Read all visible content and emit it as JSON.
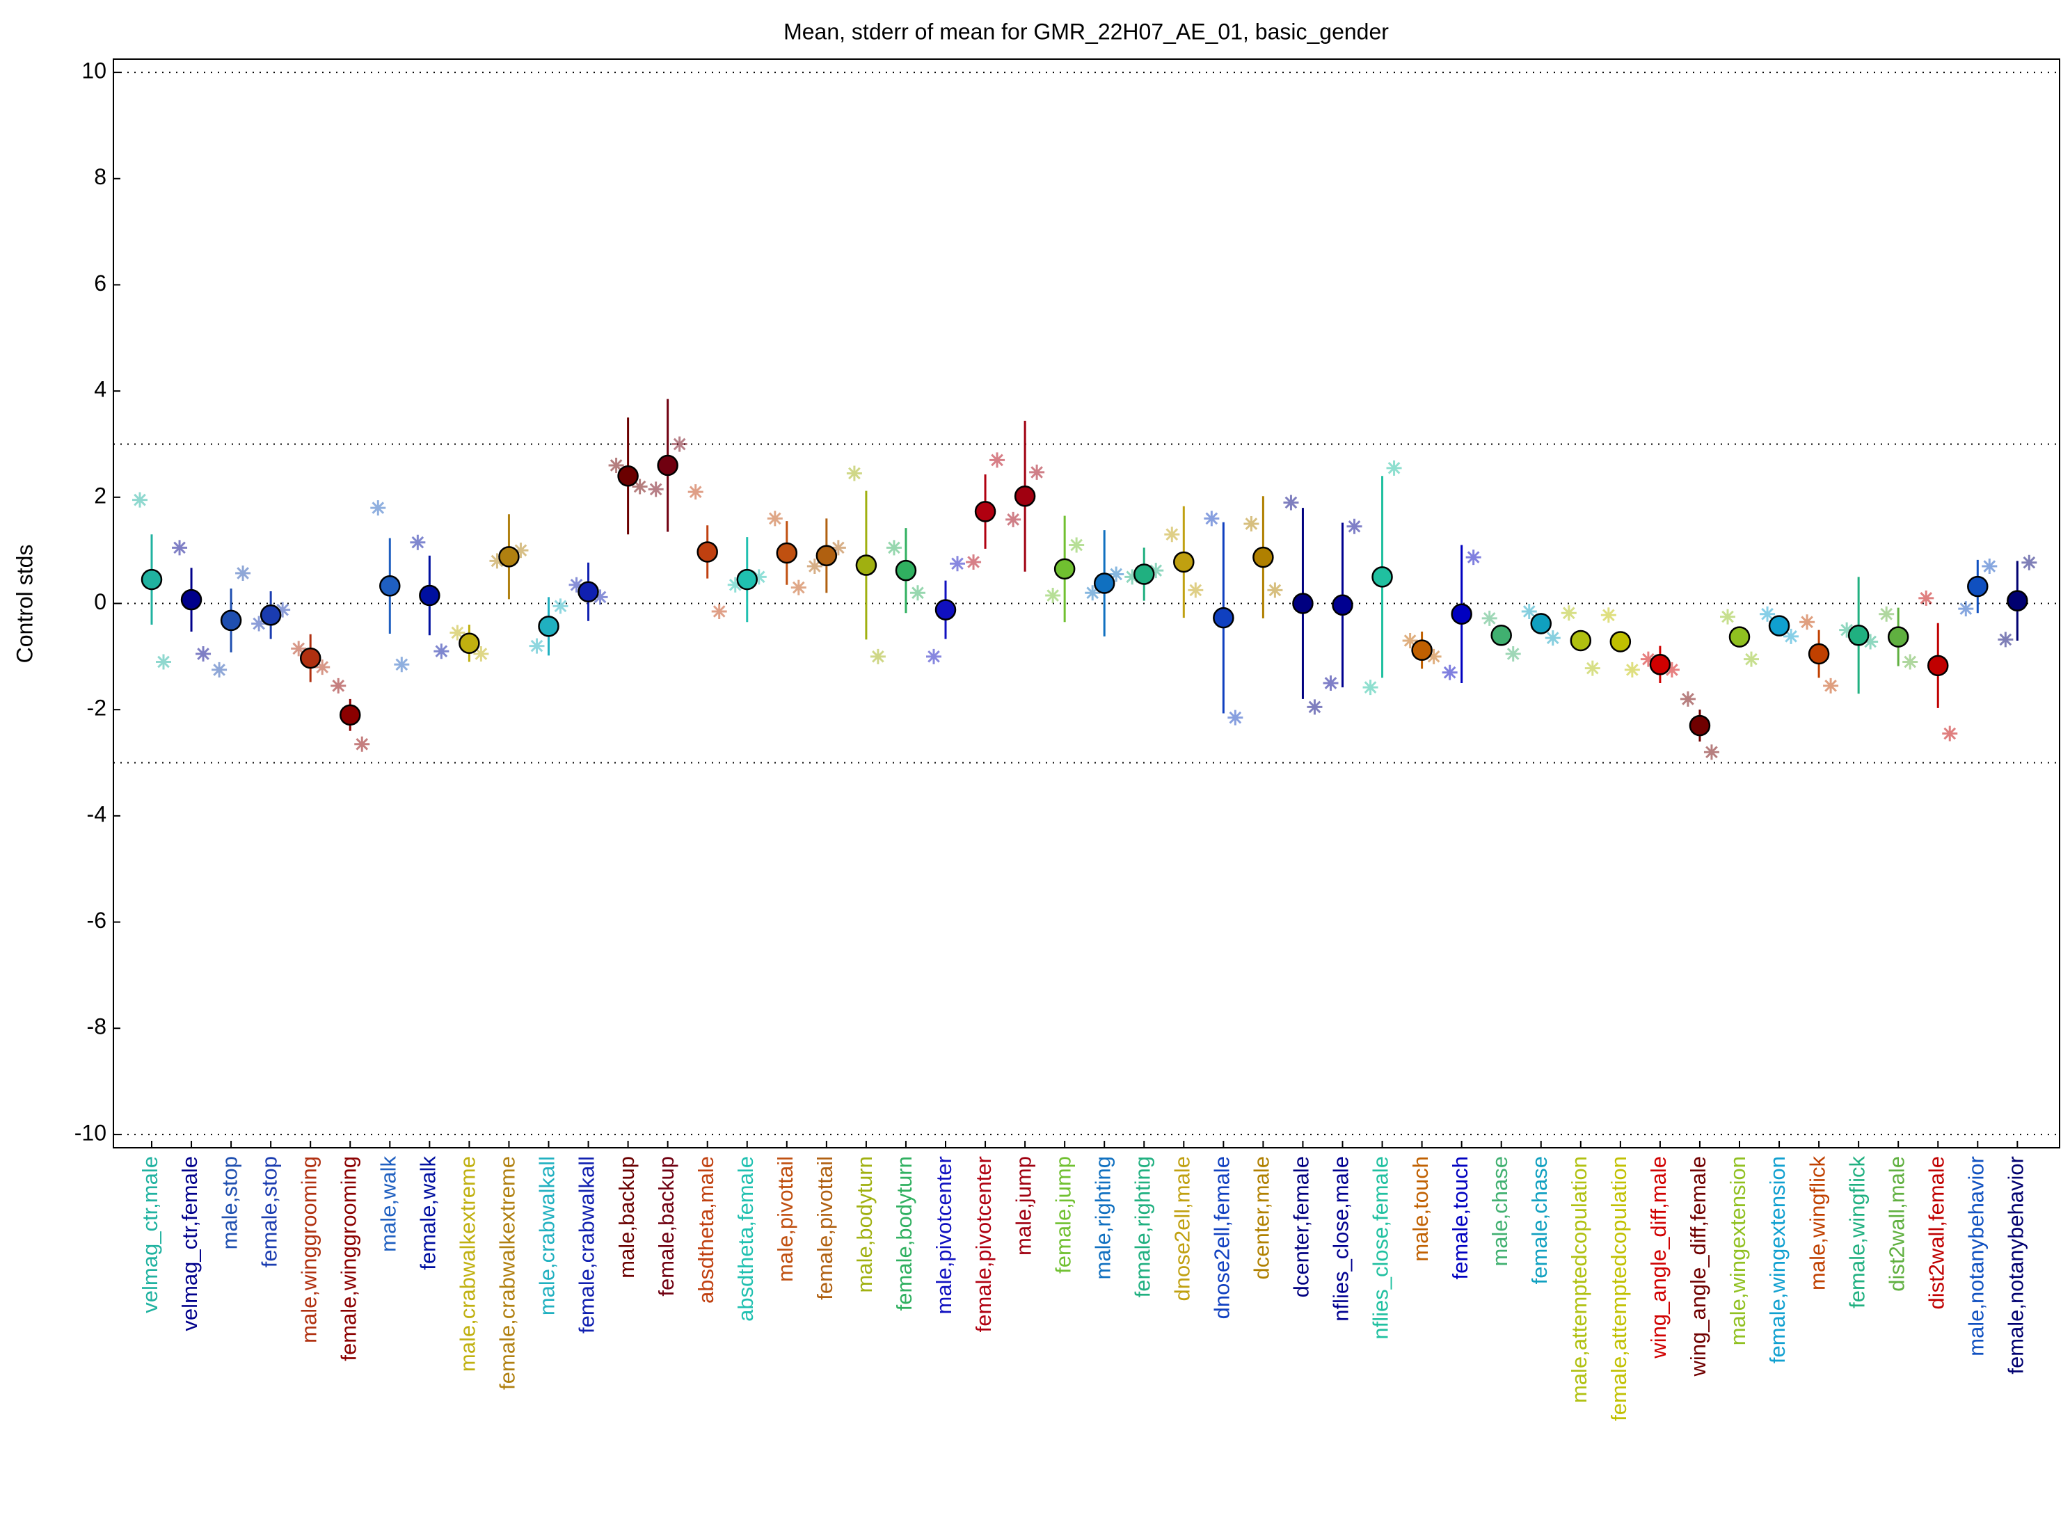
{
  "chart_data": {
    "type": "errorbar",
    "title": "Mean, stderr of mean for GMR_22H07_AE_01, basic_gender",
    "ylabel": "Control stds",
    "ylim": [
      -10.25,
      10.25
    ],
    "yticks": [
      -10,
      -8,
      -6,
      -4,
      -2,
      0,
      2,
      4,
      6,
      8,
      10
    ],
    "hlines": [
      -10,
      -3,
      0,
      3,
      10
    ],
    "categories": [
      "velmag_ctr,male",
      "velmag_ctr,female",
      "male,stop",
      "female,stop",
      "male,winggrooming",
      "female,winggrooming",
      "male,walk",
      "female,walk",
      "male,crabwalkextreme",
      "female,crabwalkextreme",
      "male,crabwalkall",
      "female,crabwalkall",
      "male,backup",
      "female,backup",
      "absdtheta,male",
      "absdtheta,female",
      "male,pivottail",
      "female,pivottail",
      "male,bodyturn",
      "female,bodyturn",
      "male,pivotcenter",
      "female,pivotcenter",
      "male,jump",
      "female,jump",
      "male,righting",
      "female,righting",
      "dnose2ell,male",
      "dnose2ell,female",
      "dcenter,male",
      "dcenter,female",
      "nflies_close,male",
      "nflies_close,female",
      "male,touch",
      "female,touch",
      "male,chase",
      "female,chase",
      "male,attemptedcopulation",
      "female,attemptedcopulation",
      "wing_angle_diff,male",
      "wing_angle_diff,female",
      "male,wingextension",
      "female,wingextension",
      "male,wingflick",
      "female,wingflick",
      "dist2wall,male",
      "dist2wall,female",
      "male,notanybehavior",
      "female,notanybehavior"
    ],
    "values": [
      0.45,
      0.07,
      -0.32,
      -0.22,
      -1.03,
      -2.1,
      0.33,
      0.15,
      -0.75,
      0.88,
      -0.43,
      0.22,
      2.4,
      2.6,
      0.97,
      0.45,
      0.95,
      0.9,
      0.72,
      0.62,
      -0.12,
      1.73,
      2.02,
      0.65,
      0.38,
      0.55,
      0.78,
      -0.27,
      0.87,
      0.0,
      -0.03,
      0.5,
      -0.88,
      -0.2,
      -0.6,
      -0.38,
      -0.7,
      -0.72,
      -1.15,
      -2.3,
      -0.63,
      -0.42,
      -0.95,
      -0.6,
      -0.63,
      -1.17,
      0.32,
      0.05
    ],
    "errors": [
      0.85,
      0.6,
      0.6,
      0.45,
      0.45,
      0.3,
      0.9,
      0.75,
      0.35,
      0.8,
      0.55,
      0.55,
      1.1,
      1.25,
      0.5,
      0.8,
      0.6,
      0.7,
      1.4,
      0.8,
      0.55,
      0.7,
      1.42,
      1.0,
      1.0,
      0.5,
      1.05,
      1.8,
      1.15,
      1.8,
      1.55,
      1.9,
      0.35,
      1.3,
      0.2,
      0.2,
      0.1,
      0.1,
      0.35,
      0.3,
      0.1,
      0.15,
      0.45,
      1.1,
      0.55,
      0.8,
      0.5,
      0.75
    ],
    "star_left": [
      1.95,
      1.05,
      -1.25,
      -0.38,
      -0.85,
      -1.55,
      1.8,
      1.15,
      -0.55,
      0.8,
      -0.8,
      0.35,
      2.6,
      2.15,
      2.1,
      0.35,
      1.6,
      0.7,
      2.45,
      1.05,
      -1.0,
      0.78,
      1.58,
      0.15,
      0.2,
      0.5,
      1.3,
      1.6,
      1.5,
      1.9,
      -1.5,
      -1.58,
      -0.7,
      -1.3,
      -0.28,
      -0.15,
      -0.18,
      -0.22,
      -1.05,
      -1.8,
      -0.25,
      -0.2,
      -0.35,
      -0.5,
      -0.2,
      0.1,
      -0.1,
      -0.68
    ],
    "star_right": [
      -1.1,
      -0.95,
      0.57,
      -0.12,
      -1.2,
      -2.65,
      -1.15,
      -0.9,
      -0.95,
      1.0,
      -0.05,
      0.12,
      2.2,
      3.0,
      -0.15,
      0.5,
      0.3,
      1.05,
      -1.0,
      0.2,
      0.75,
      2.7,
      2.47,
      1.1,
      0.55,
      0.62,
      0.25,
      -2.15,
      0.25,
      -1.95,
      1.45,
      2.55,
      -1.0,
      0.87,
      -0.95,
      -0.65,
      -1.22,
      -1.25,
      -1.25,
      -2.8,
      -1.05,
      -0.62,
      -1.55,
      -0.72,
      -1.1,
      -2.45,
      0.7,
      0.77
    ],
    "colors": [
      "#20b2a0",
      "#00008b",
      "#1f4fb0",
      "#1a3cb0",
      "#b03010",
      "#8b0000",
      "#1f5fc0",
      "#0010a0",
      "#c0b010",
      "#b08010",
      "#20b0c0",
      "#1020b0",
      "#6b0000",
      "#700010",
      "#c04010",
      "#20c0b0",
      "#c05010",
      "#b06010",
      "#a0b010",
      "#30b060",
      "#1010c0",
      "#b00010",
      "#a00010",
      "#70c030",
      "#1070c0",
      "#20b080",
      "#c0a010",
      "#1040c0",
      "#b08000",
      "#000080",
      "#000090",
      "#20c0a0",
      "#c06000",
      "#0000c0",
      "#40b070",
      "#10a0c0",
      "#b0c010",
      "#c0c000",
      "#d00000",
      "#700000",
      "#90c020",
      "#10a0d0",
      "#c04000",
      "#20b080",
      "#60b040",
      "#c00000",
      "#1050c0",
      "#000070"
    ]
  }
}
